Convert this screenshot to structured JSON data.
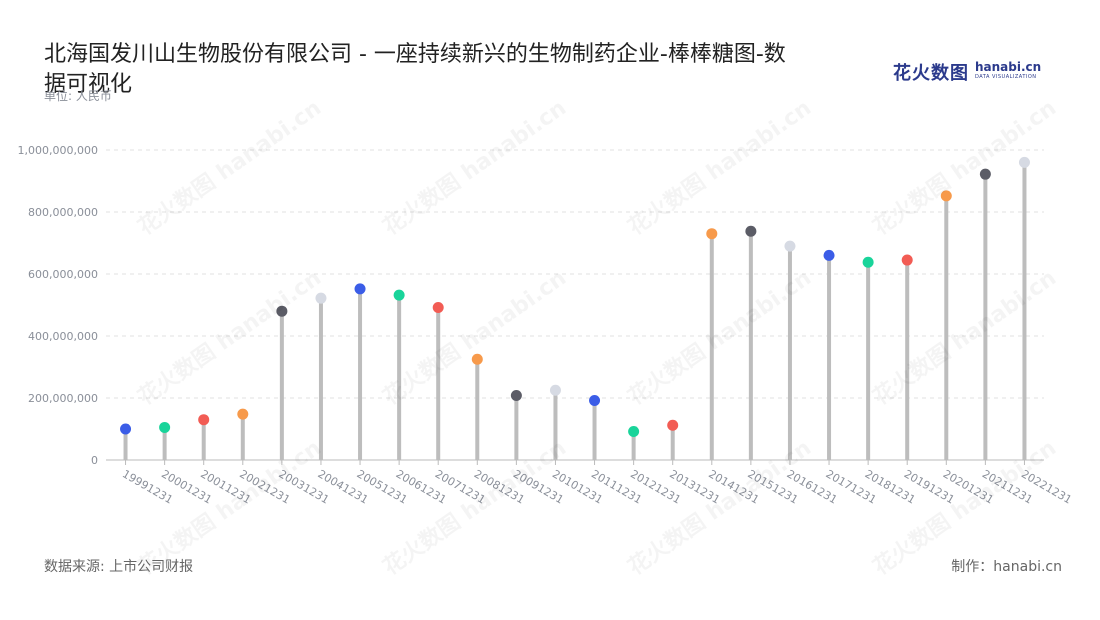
{
  "title": "北海国发川山生物股份有限公司 - 一座持续新兴的生物制药企业-棒棒糖图-数据可视化",
  "unit_label": "单位: 人民币",
  "logo": {
    "cn_text": "花火数图",
    "en_text": "hanabi.cn",
    "en_sub": "DATA VISUALIZATION"
  },
  "source": "数据来源: 上市公司财报",
  "credit": "制作：hanabi.cn",
  "watermark_text": "花火数图 hanabi.cn",
  "colors": {
    "stick": "#bdbdbd",
    "grid": "#e0e0e0",
    "axis_text": "#8a8f99",
    "palette": [
      "#3b5de7",
      "#19d49a",
      "#f25c54",
      "#f79a4b",
      "#5b5c66",
      "#d6dae3"
    ]
  },
  "chart_data": {
    "type": "lollipop",
    "categories": [
      "19991231",
      "20001231",
      "20011231",
      "20021231",
      "20031231",
      "20041231",
      "20051231",
      "20061231",
      "20071231",
      "20081231",
      "20091231",
      "20101231",
      "20111231",
      "20121231",
      "20131231",
      "20141231",
      "20151231",
      "20161231",
      "20171231",
      "20181231",
      "20191231",
      "20201231",
      "20211231",
      "20221231"
    ],
    "values": [
      100000000,
      105000000,
      130000000,
      148000000,
      480000000,
      522000000,
      552000000,
      532000000,
      492000000,
      325000000,
      208000000,
      225000000,
      192000000,
      92000000,
      112000000,
      730000000,
      738000000,
      690000000,
      660000000,
      638000000,
      645000000,
      852000000,
      922000000,
      960000000
    ],
    "ylim": [
      0,
      1000000000
    ],
    "yticks": [
      0,
      200000000,
      400000000,
      600000000,
      800000000,
      1000000000
    ],
    "ytick_labels": [
      "0",
      "200,000,000",
      "400,000,000",
      "600,000,000",
      "800,000,000",
      "1,000,000,000"
    ],
    "grid": true
  }
}
